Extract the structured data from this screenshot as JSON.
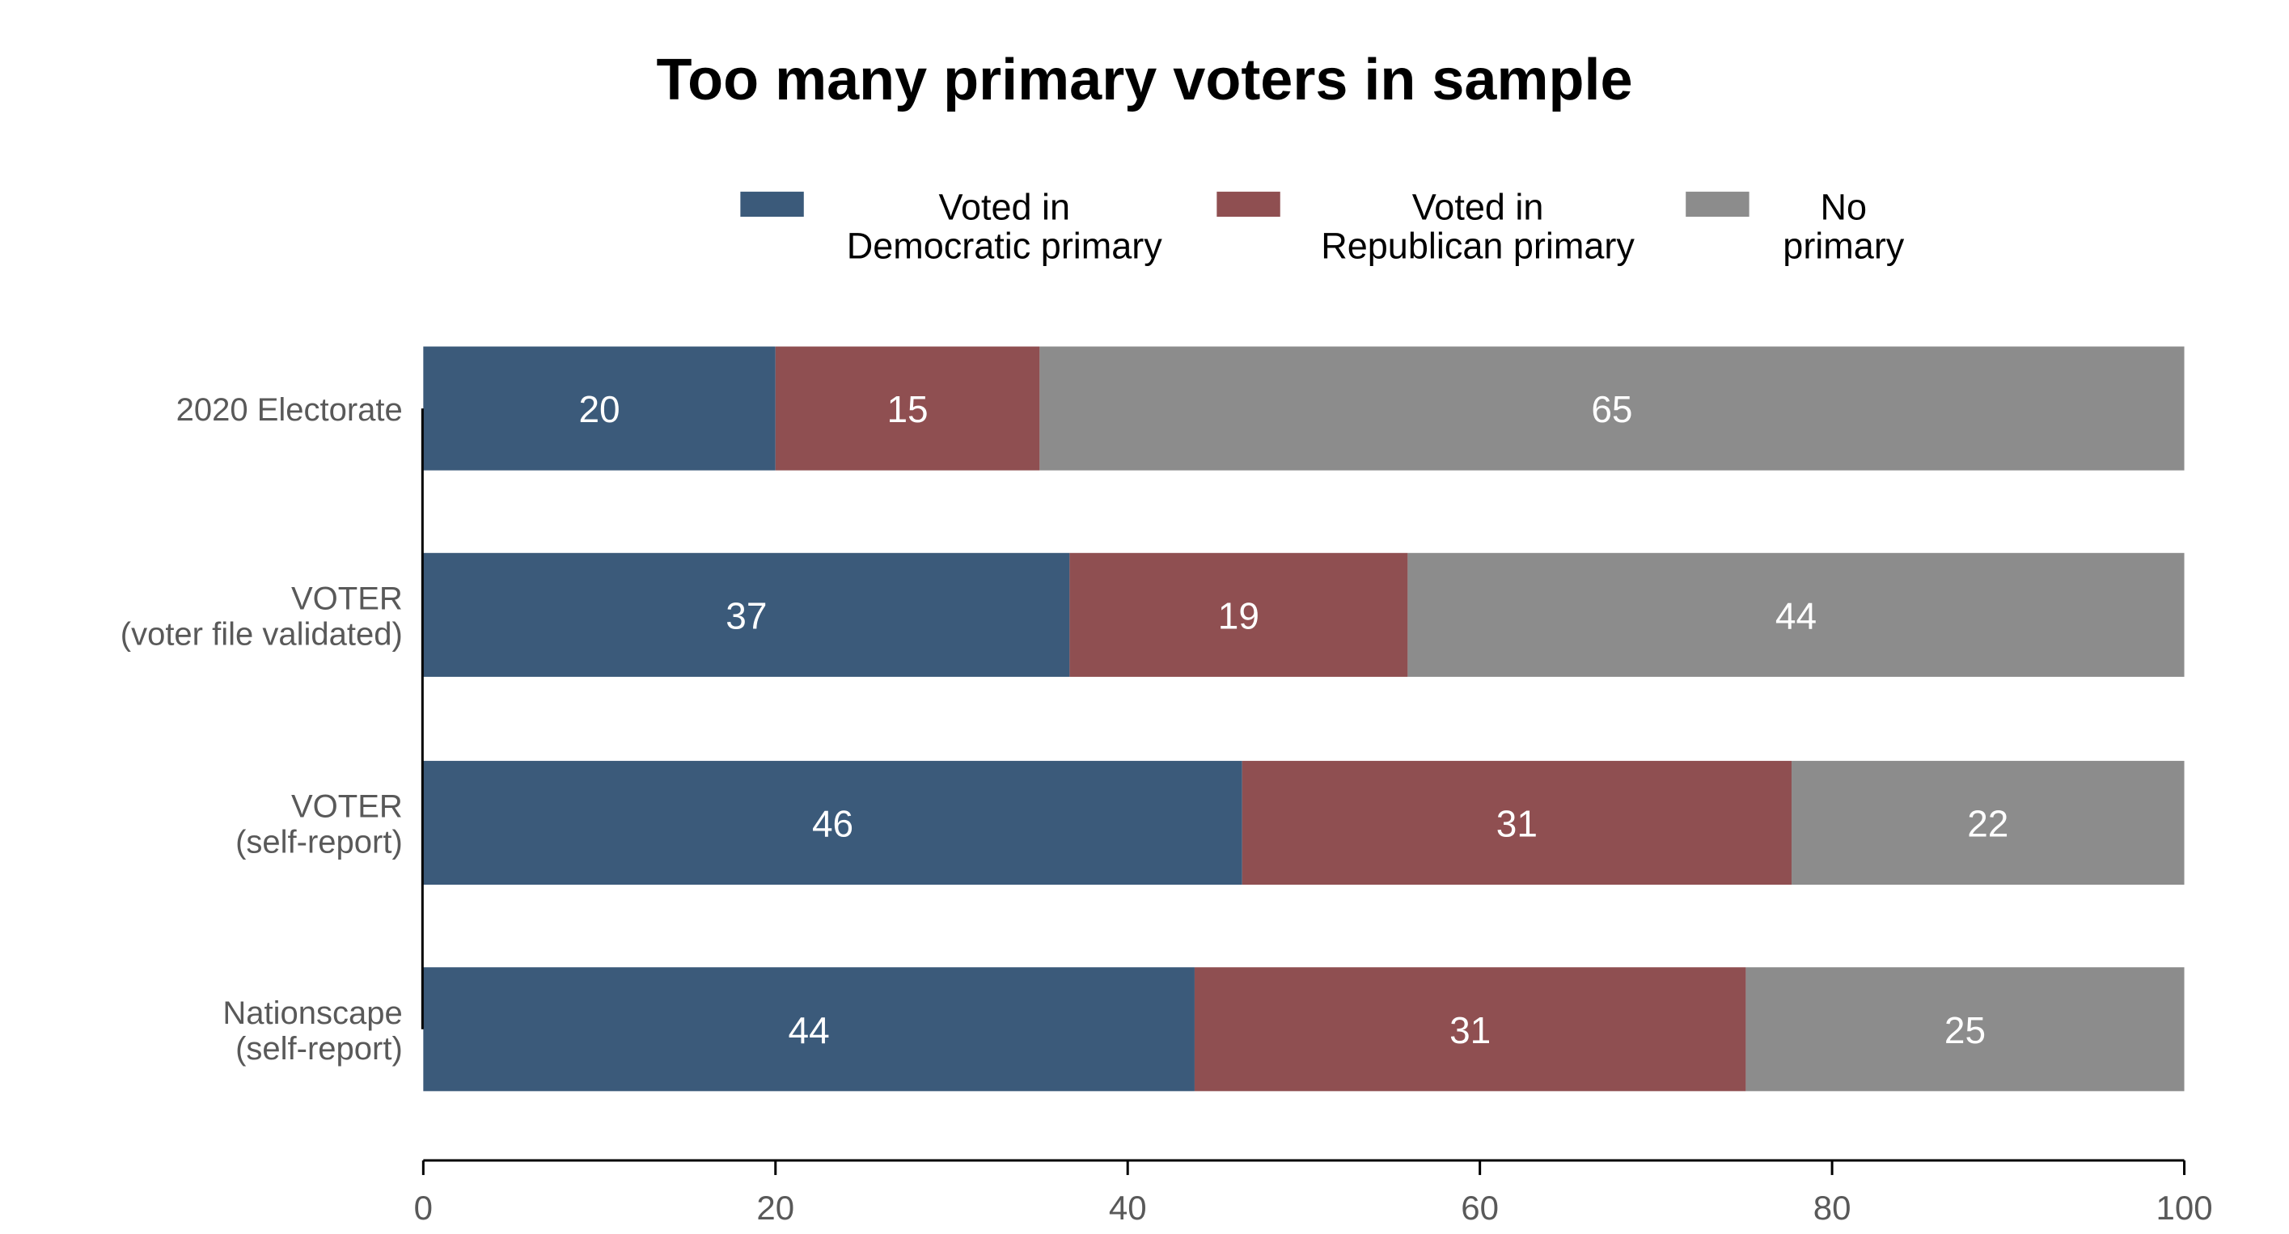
{
  "chart_data": {
    "type": "bar",
    "orientation": "horizontal",
    "stacked": true,
    "title": "Too many primary voters in sample",
    "categories": [
      [
        "2020 Electorate"
      ],
      [
        "VOTER",
        "(voter file validated)"
      ],
      [
        "VOTER",
        "(self-report)"
      ],
      [
        "Nationscape",
        "(self-report)"
      ]
    ],
    "series": [
      {
        "name": [
          "Voted in",
          "Democratic primary"
        ],
        "color": "#3b5a7a",
        "values": [
          20,
          36.7,
          46.5,
          43.8
        ]
      },
      {
        "name": [
          "Voted in",
          "Republican primary"
        ],
        "color": "#8f4f51",
        "values": [
          15,
          19.2,
          31.2,
          31.3
        ]
      },
      {
        "name": [
          "No",
          "primary"
        ],
        "color": "#8c8c8c",
        "values": [
          65,
          44.1,
          22.3,
          24.9
        ]
      }
    ],
    "data_labels": [
      [
        "20",
        "15",
        "65"
      ],
      [
        "37",
        "19",
        "44"
      ],
      [
        "46",
        "31",
        "22"
      ],
      [
        "44",
        "31",
        "25"
      ]
    ],
    "xlim": [
      0,
      100
    ],
    "x_ticks": [
      0,
      20,
      40,
      60,
      80,
      100
    ],
    "xlabel": "",
    "ylabel": "",
    "legend_position": "top",
    "grid": false
  }
}
